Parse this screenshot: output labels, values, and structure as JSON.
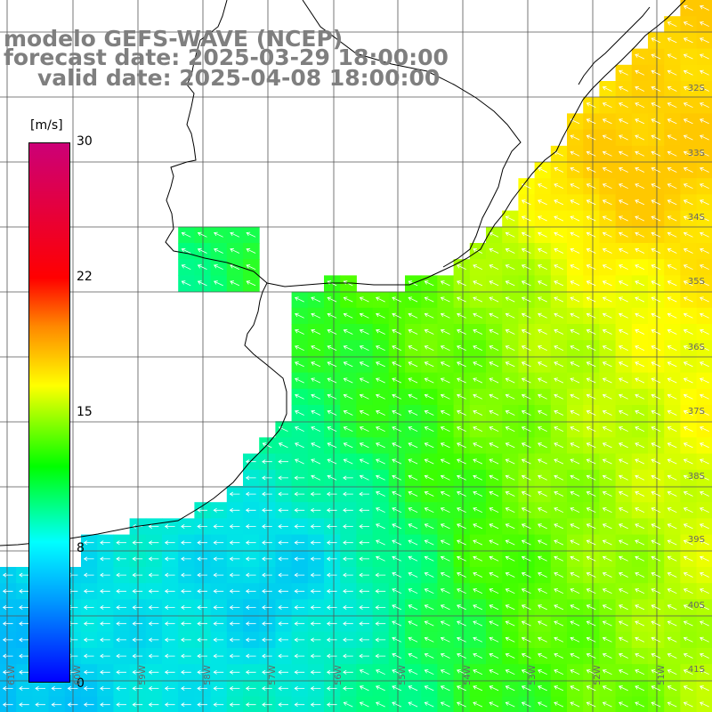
{
  "title": {
    "line1": "modelo GEFS-WAVE (NCEP)",
    "line2": "forecast date: 2025-03-29 18:00:00",
    "line3": "valid date: 2025-04-08 18:00:00"
  },
  "colorbar": {
    "unit": "[m/s]",
    "ticks": [
      "30",
      "22",
      "15",
      "8",
      "0"
    ],
    "colors": [
      "#cc0077",
      "#ff0000",
      "#ff8800",
      "#ffff00",
      "#00ff00",
      "#00ffff",
      "#0099ff",
      "#0000ff"
    ]
  },
  "lat_labels": [
    "32S",
    "33S",
    "34S",
    "35S",
    "36S",
    "37S",
    "38S",
    "39S",
    "40S",
    "41S"
  ],
  "lon_labels": [
    "61W",
    "60W",
    "59W",
    "58W",
    "57W",
    "56W",
    "55W",
    "54W",
    "53W",
    "52W",
    "51W"
  ],
  "colors": {
    "grid": "#555555",
    "coastline": "#000000",
    "arrows": "#ffffff"
  }
}
